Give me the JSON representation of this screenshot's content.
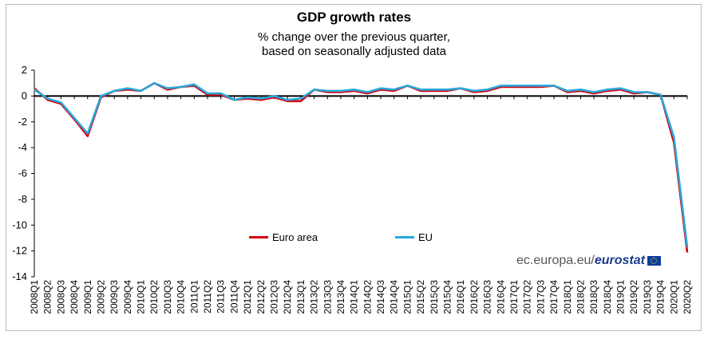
{
  "chart_data": {
    "type": "line",
    "title": "GDP growth rates",
    "subtitle": [
      "% change over the previous quarter,",
      "based on seasonally adjusted data"
    ],
    "xlabel": "",
    "ylabel": "",
    "ylim": [
      -14,
      2
    ],
    "yticks": [
      2,
      0,
      -2,
      -4,
      -6,
      -8,
      -10,
      -12,
      -14
    ],
    "grid": false,
    "legend_position": "bottom-center",
    "categories": [
      "2008Q1",
      "2008Q2",
      "2008Q3",
      "2008Q4",
      "2009Q1",
      "2009Q2",
      "2009Q3",
      "2009Q4",
      "2010Q1",
      "2010Q2",
      "2010Q3",
      "2010Q4",
      "2011Q1",
      "2011Q2",
      "2011Q3",
      "2011Q4",
      "2012Q1",
      "2012Q2",
      "2012Q3",
      "2012Q4",
      "2013Q1",
      "2013Q2",
      "2013Q3",
      "2013Q4",
      "2014Q1",
      "2014Q2",
      "2014Q3",
      "2014Q4",
      "2015Q1",
      "2015Q2",
      "2015Q3",
      "2015Q4",
      "2016Q1",
      "2016Q2",
      "2016Q3",
      "2016Q4",
      "2017Q1",
      "2017Q2",
      "2017Q3",
      "2017Q4",
      "2018Q1",
      "2018Q2",
      "2018Q3",
      "2018Q4",
      "2019Q1",
      "2019Q2",
      "2019Q3",
      "2019Q4",
      "2020Q1",
      "2020Q2"
    ],
    "series": [
      {
        "name": "Euro area",
        "color": "#d9000d",
        "values": [
          0.6,
          -0.3,
          -0.6,
          -1.8,
          -3.1,
          -0.1,
          0.4,
          0.5,
          0.4,
          1.0,
          0.5,
          0.7,
          0.8,
          0.1,
          0.1,
          -0.3,
          -0.2,
          -0.3,
          -0.1,
          -0.4,
          -0.4,
          0.5,
          0.3,
          0.3,
          0.4,
          0.2,
          0.5,
          0.4,
          0.8,
          0.4,
          0.4,
          0.4,
          0.6,
          0.3,
          0.4,
          0.7,
          0.7,
          0.7,
          0.7,
          0.8,
          0.3,
          0.4,
          0.2,
          0.4,
          0.5,
          0.2,
          0.3,
          0.1,
          -3.6,
          -12.1
        ]
      },
      {
        "name": "EU",
        "color": "#28a8dc",
        "values": [
          0.5,
          -0.2,
          -0.5,
          -1.7,
          -2.9,
          0.0,
          0.4,
          0.6,
          0.4,
          1.0,
          0.6,
          0.7,
          0.9,
          0.2,
          0.2,
          -0.3,
          -0.1,
          -0.2,
          0.0,
          -0.3,
          -0.2,
          0.5,
          0.4,
          0.4,
          0.5,
          0.3,
          0.6,
          0.5,
          0.8,
          0.5,
          0.5,
          0.5,
          0.6,
          0.4,
          0.5,
          0.8,
          0.8,
          0.8,
          0.8,
          0.8,
          0.4,
          0.5,
          0.3,
          0.5,
          0.6,
          0.3,
          0.3,
          0.1,
          -3.2,
          -11.7
        ]
      }
    ]
  },
  "source": {
    "site": "ec.europa.eu/",
    "brand": "eurostat"
  }
}
